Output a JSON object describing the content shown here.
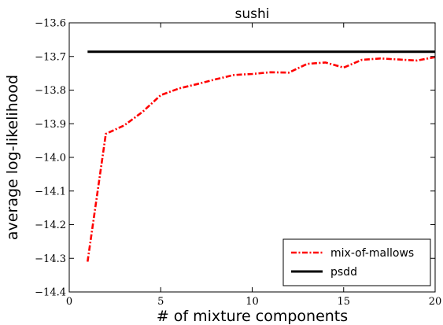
{
  "chart_data": {
    "type": "line",
    "title": "sushi",
    "xlabel": "# of mixture components",
    "ylabel": "average log-likelihood",
    "xlim": [
      0,
      20
    ],
    "ylim": [
      -14.4,
      -13.6
    ],
    "xticks": [
      0,
      5,
      10,
      15,
      20
    ],
    "xtick_labels": [
      "0",
      "5",
      "10",
      "15",
      "20"
    ],
    "yticks": [
      -14.4,
      -14.3,
      -14.2,
      -14.1,
      -14.0,
      -13.9,
      -13.8,
      -13.7,
      -13.6
    ],
    "ytick_labels": [
      "−14.4",
      "−14.3",
      "−14.2",
      "−14.1",
      "−14.0",
      "−13.9",
      "−13.8",
      "−13.7",
      "−13.6"
    ],
    "grid": false,
    "legend_position": "bottom-right",
    "series": [
      {
        "name": "mix-of-mallows",
        "color": "#ff0000",
        "style": "dash-dot",
        "x": [
          1,
          2,
          3,
          4,
          5,
          6,
          7,
          8,
          9,
          10,
          11,
          12,
          13,
          14,
          15,
          16,
          17,
          18,
          19,
          20
        ],
        "y": [
          -14.31,
          -13.93,
          -13.905,
          -13.865,
          -13.815,
          -13.795,
          -13.782,
          -13.768,
          -13.755,
          -13.752,
          -13.747,
          -13.748,
          -13.722,
          -13.718,
          -13.733,
          -13.71,
          -13.706,
          -13.709,
          -13.712,
          -13.702
        ]
      },
      {
        "name": "psdd",
        "color": "#000000",
        "style": "solid",
        "x": [
          1,
          20
        ],
        "y": [
          -13.686,
          -13.686
        ]
      }
    ]
  }
}
